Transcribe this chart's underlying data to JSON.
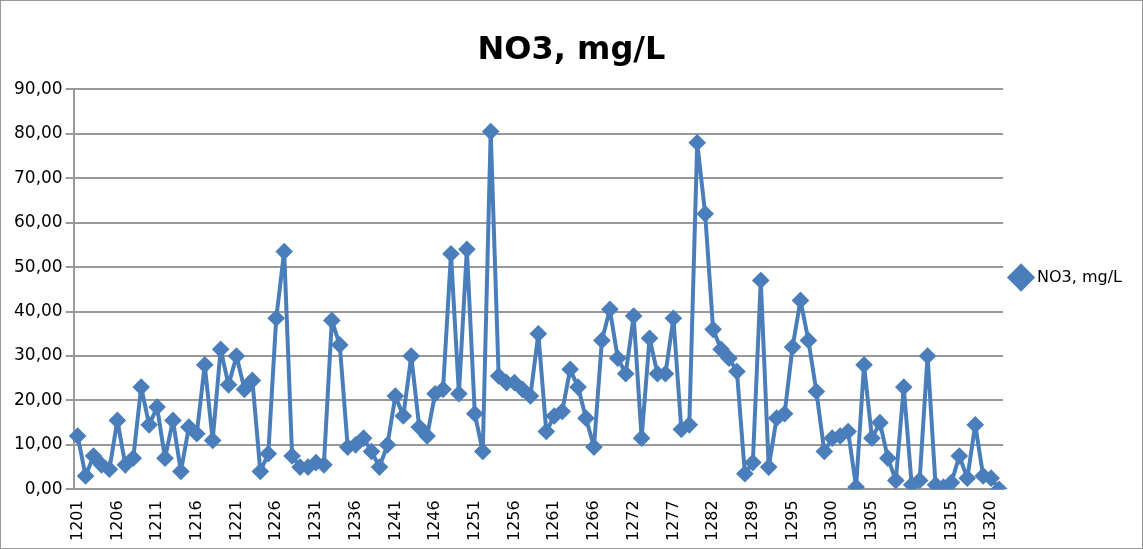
{
  "chart_data": {
    "type": "line",
    "title": "NO3, mg/L",
    "categories": [
      "1201",
      null,
      null,
      null,
      null,
      "1206",
      null,
      null,
      null,
      null,
      "1211",
      null,
      null,
      null,
      null,
      "1216",
      null,
      null,
      null,
      null,
      "1221",
      null,
      null,
      null,
      null,
      "1226",
      null,
      null,
      null,
      null,
      "1231",
      null,
      null,
      null,
      null,
      "1236",
      null,
      null,
      null,
      null,
      "1241",
      null,
      null,
      null,
      null,
      "1246",
      null,
      null,
      null,
      null,
      "1251",
      null,
      null,
      null,
      null,
      "1256",
      null,
      null,
      null,
      null,
      "1261",
      null,
      null,
      null,
      null,
      "1266",
      null,
      null,
      null,
      null,
      "1272",
      null,
      null,
      null,
      null,
      "1277",
      null,
      null,
      null,
      null,
      "1282",
      null,
      null,
      null,
      null,
      "1289",
      null,
      null,
      null,
      null,
      "1295",
      null,
      null,
      null,
      null,
      "1300",
      null,
      null,
      null,
      null,
      "1305",
      null,
      null,
      null,
      null,
      "1310",
      null,
      null,
      null,
      null,
      "1315",
      null,
      null,
      null,
      null,
      "1320",
      null
    ],
    "series": [
      {
        "name": "NO3, mg/L",
        "color": "#4a7ebb",
        "values": [
          12,
          3,
          7.5,
          5.5,
          4.5,
          15.5,
          5.5,
          7,
          23,
          14.5,
          18.5,
          7,
          15.5,
          4,
          14,
          12.5,
          28,
          11,
          31.5,
          23.5,
          30,
          22.5,
          24.5,
          4,
          8,
          38.5,
          53.5,
          7.5,
          5,
          5,
          6,
          5.5,
          38,
          32.5,
          9.5,
          10,
          11.5,
          8.5,
          5,
          10,
          21,
          16.5,
          30,
          14,
          12,
          21.5,
          22.5,
          53,
          21.5,
          54,
          17,
          8.5,
          80.5,
          25.5,
          24,
          24,
          22.5,
          21,
          35,
          13,
          16.5,
          17.5,
          27,
          23,
          16,
          9.5,
          33.5,
          40.5,
          29.5,
          26,
          39,
          11.5,
          34,
          26,
          26,
          38.5,
          13.5,
          14.5,
          78,
          62,
          36,
          31.5,
          29.5,
          26.5,
          3.5,
          6,
          47,
          5,
          16,
          17,
          32,
          42.5,
          33.5,
          22,
          8.5,
          11.5,
          12,
          13,
          0.5,
          28,
          11.5,
          15,
          7,
          2,
          23,
          1,
          2,
          30,
          1,
          0.5,
          1.5,
          7.5,
          2.5,
          14.5,
          3,
          2.5,
          0
        ]
      }
    ],
    "ylim": [
      0,
      90
    ],
    "yticks": [
      {
        "value": 0,
        "label": "0,00"
      },
      {
        "value": 10,
        "label": "10,00"
      },
      {
        "value": 20,
        "label": "20,00"
      },
      {
        "value": 30,
        "label": "30,00"
      },
      {
        "value": 40,
        "label": "40,00"
      },
      {
        "value": 50,
        "label": "50,00"
      },
      {
        "value": 60,
        "label": "60,00"
      },
      {
        "value": 70,
        "label": "70,00"
      },
      {
        "value": 80,
        "label": "80,00"
      },
      {
        "value": 90,
        "label": "90,00"
      }
    ],
    "grid": "y",
    "legend": "right",
    "marker": "diamond",
    "line_style": "solid"
  }
}
